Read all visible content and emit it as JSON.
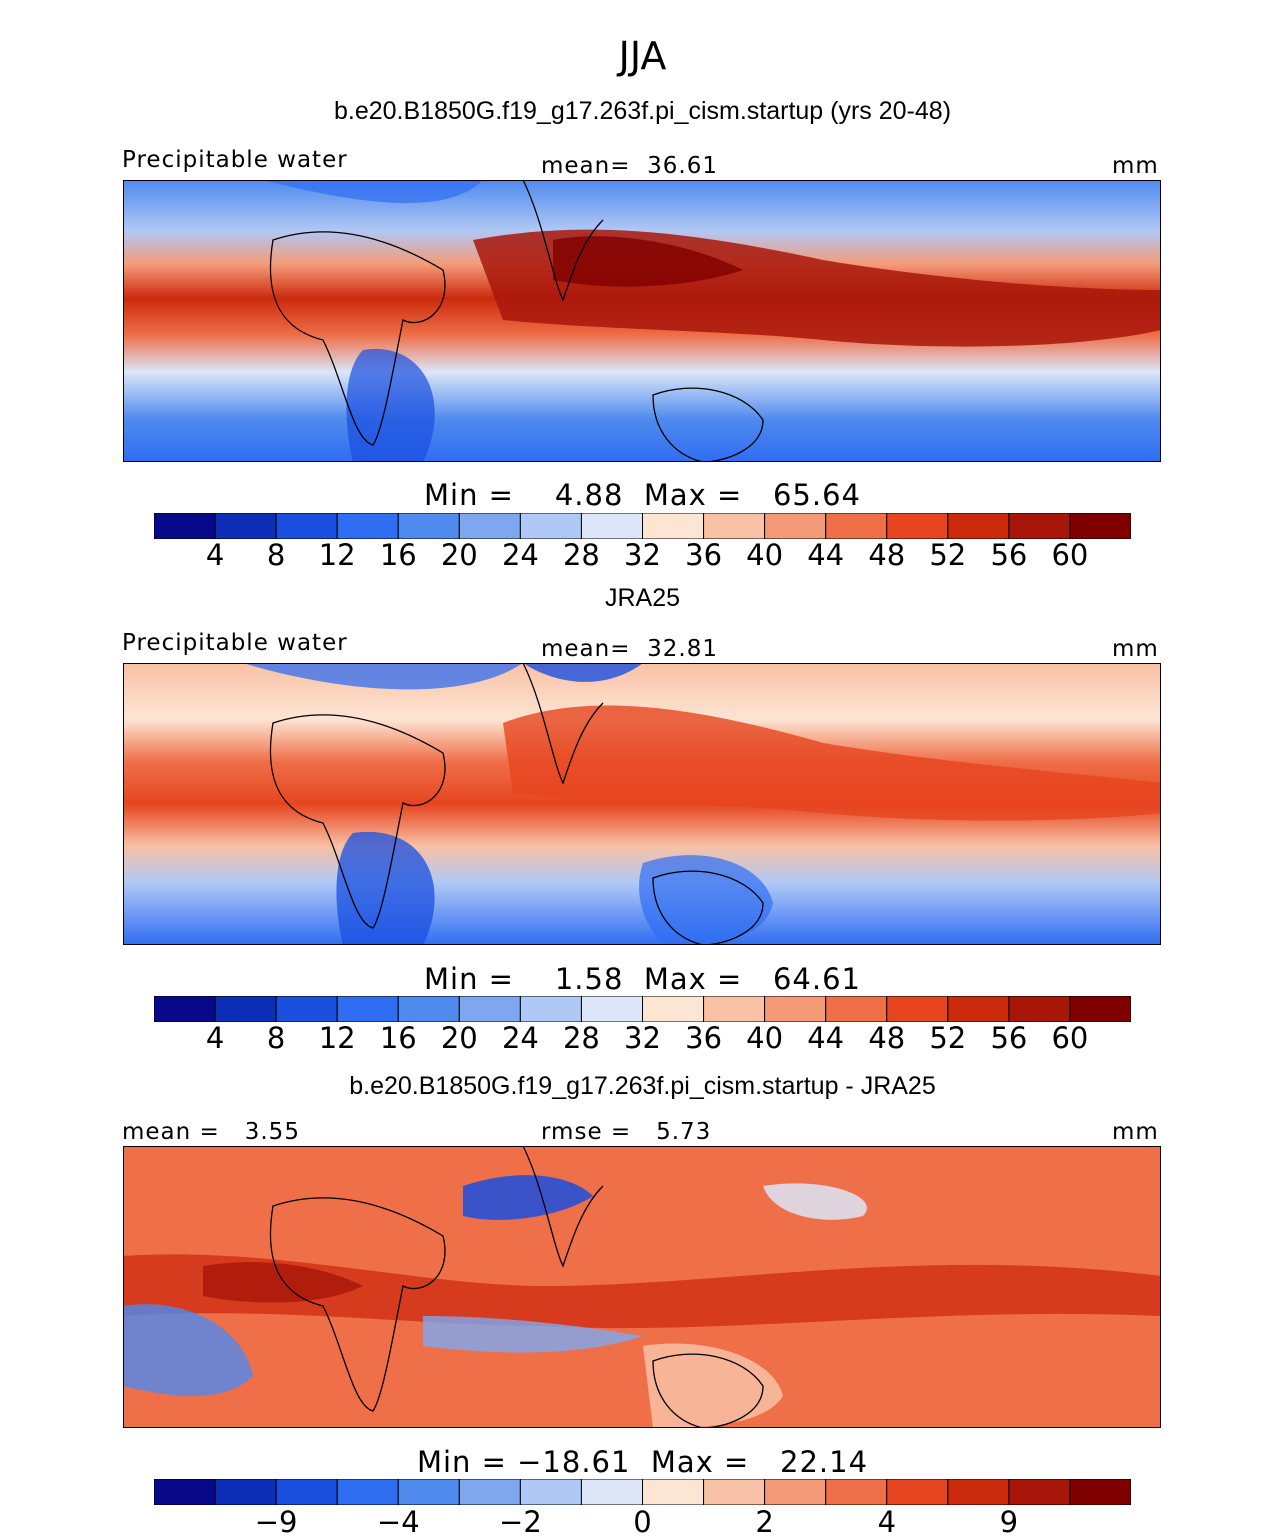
{
  "season": "JJA",
  "panels": [
    {
      "title": "b.e20.B1850G.f19_g17.263f.pi_cism.startup (yrs 20-48)",
      "left_label": "Precipitable water",
      "center_label": "mean=  36.61",
      "units": "mm",
      "minmax": "Min =    4.88  Max =   65.64"
    },
    {
      "title": "JRA25",
      "left_label": "Precipitable water",
      "center_label": "mean=  32.81",
      "units": "mm",
      "minmax": "Min =    1.58  Max =   64.61"
    },
    {
      "title": "b.e20.B1850G.f19_g17.263f.pi_cism.startup - JRA25",
      "left_label": "mean =   3.55",
      "center_label": "rmse =   5.73",
      "units": "mm",
      "minmax": "Min = −18.61  Max =   22.14"
    }
  ],
  "chart_data": [
    {
      "type": "heatmap",
      "title": "b.e20.B1850G.f19_g17.263f.pi_cism.startup (yrs 20-48)",
      "variable": "Precipitable water",
      "units": "mm",
      "mean": 36.61,
      "min": 4.88,
      "max": 65.64,
      "colorbar_ticks": [
        "4",
        "8",
        "12",
        "16",
        "20",
        "24",
        "28",
        "32",
        "36",
        "40",
        "44",
        "48",
        "52",
        "56",
        "60"
      ]
    },
    {
      "type": "heatmap",
      "title": "JRA25",
      "variable": "Precipitable water",
      "units": "mm",
      "mean": 32.81,
      "min": 1.58,
      "max": 64.61,
      "colorbar_ticks": [
        "4",
        "8",
        "12",
        "16",
        "20",
        "24",
        "28",
        "32",
        "36",
        "40",
        "44",
        "48",
        "52",
        "56",
        "60"
      ]
    },
    {
      "type": "heatmap",
      "title": "b.e20.B1850G.f19_g17.263f.pi_cism.startup - JRA25",
      "variable": "Precipitable water difference",
      "units": "mm",
      "mean": 3.55,
      "rmse": 5.73,
      "min": -18.61,
      "max": 22.14,
      "colorbar_ticks": [
        "−9",
        "−4",
        "−2",
        "0",
        "2",
        "4",
        "9"
      ]
    }
  ],
  "colorbar_colors": [
    "#08088a",
    "#0d2fb8",
    "#1a4fe0",
    "#2f6df2",
    "#4f8aee",
    "#7ea7f0",
    "#b0c8f5",
    "#dce6f8",
    "#fde5d3",
    "#f9c1a5",
    "#f49a77",
    "#ef6f48",
    "#e6451f",
    "#cc2a0d",
    "#a8160a",
    "#800000"
  ]
}
